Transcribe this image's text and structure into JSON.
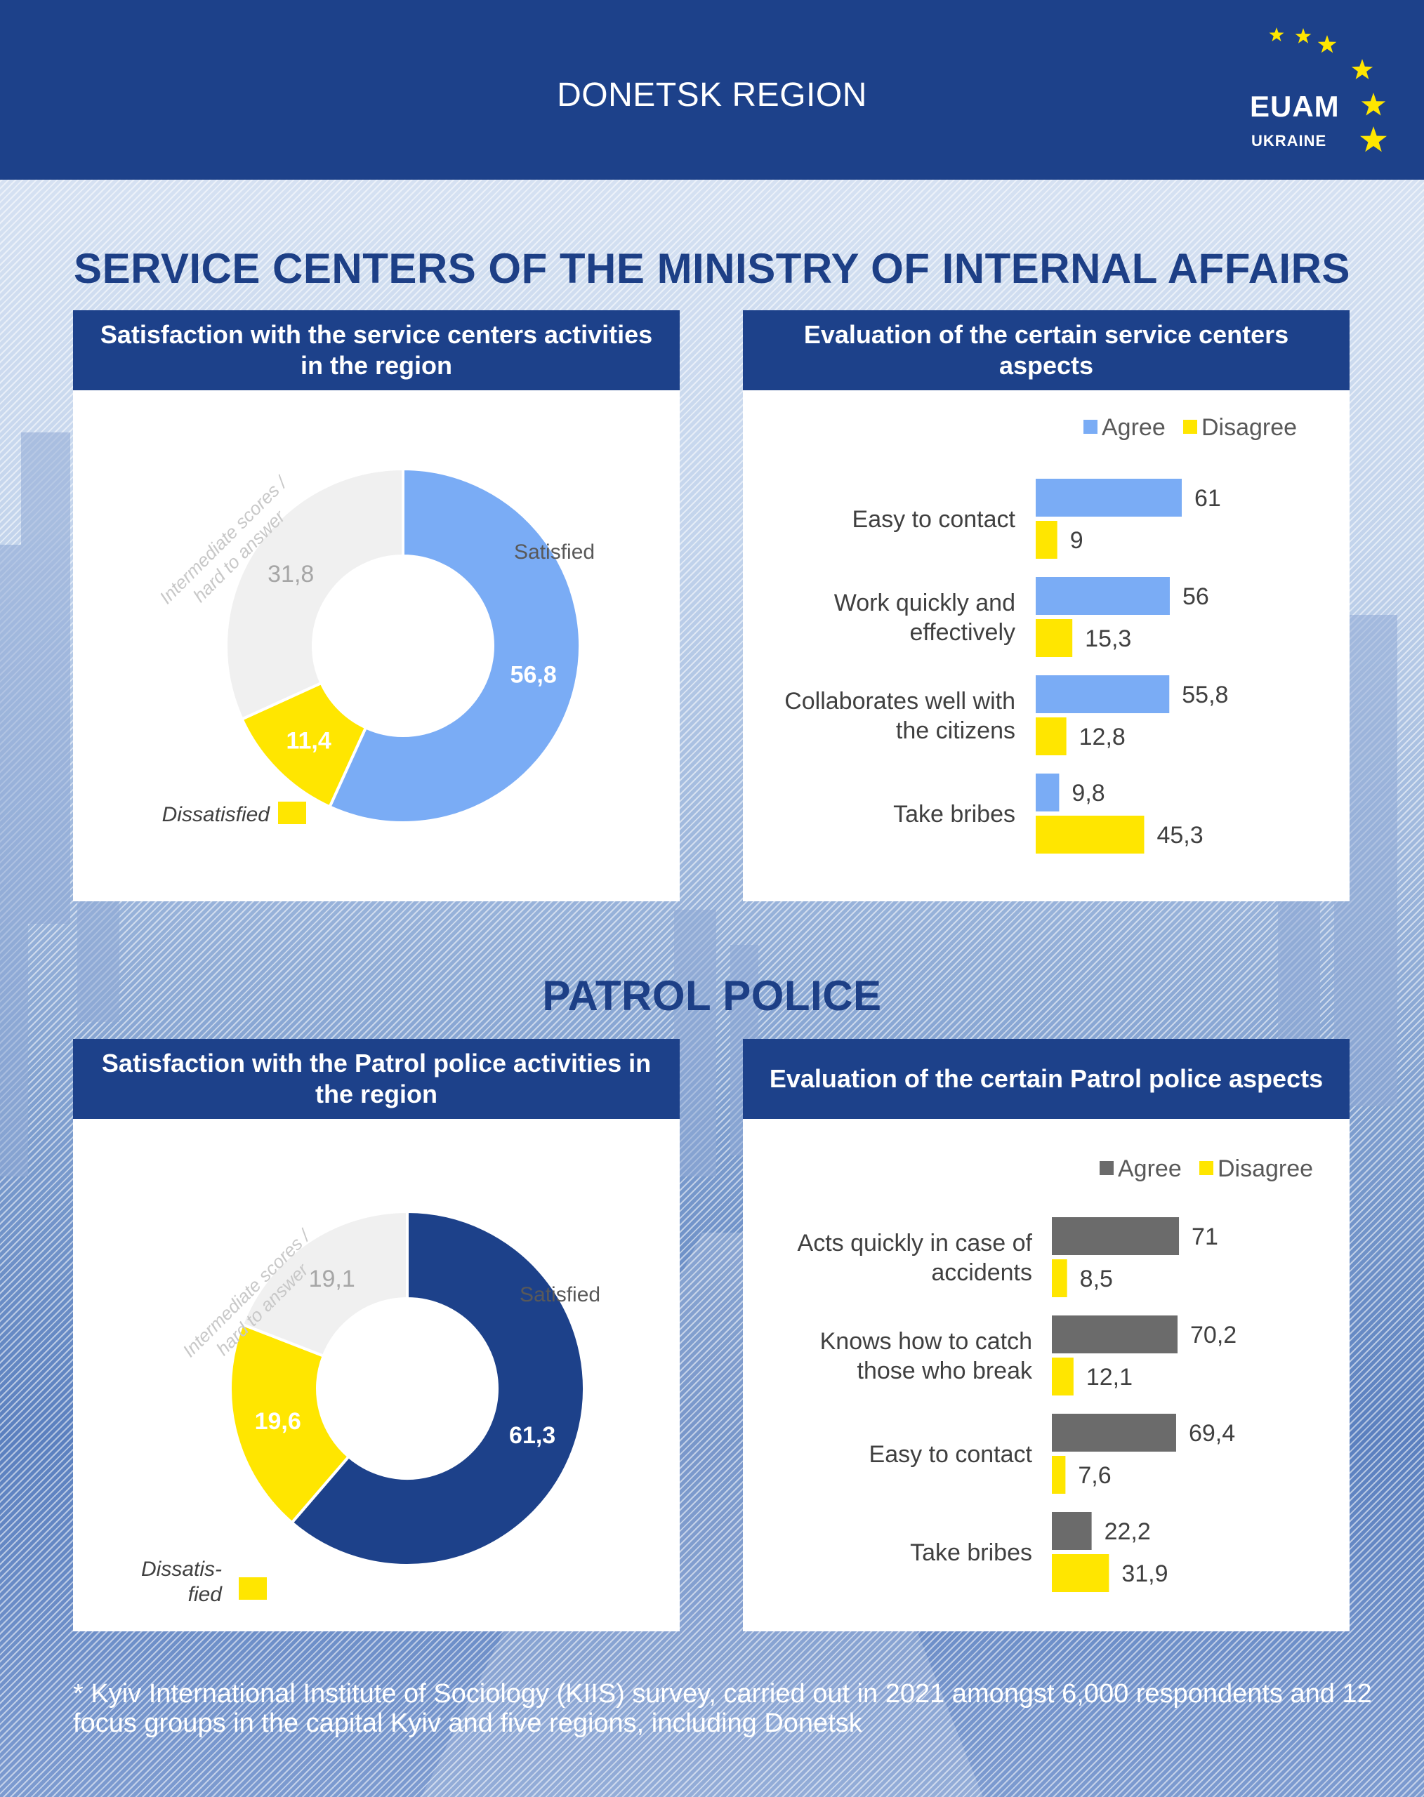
{
  "header": {
    "region": "DONETSK REGION"
  },
  "logo": {
    "name": "EUAM",
    "subtitle": "UKRAINE",
    "star_color": "#ffe600"
  },
  "colors": {
    "navy": "#1d418a",
    "light_blue": "#7aacf5",
    "yellow": "#ffe600",
    "grey_light": "#f0f0f0",
    "grey_dark": "#6b6b6b"
  },
  "sections": {
    "service_centers": "SERVICE CENTERS OF THE MINISTRY OF INTERNAL AFFAIRS",
    "patrol_police": "PATROL POLICE"
  },
  "panels": {
    "sc_satisfaction": {
      "title": "Satisfaction with the service centers activities in the region"
    },
    "sc_evaluation": {
      "title": "Evaluation of the certain service centers aspects"
    },
    "pp_satisfaction": {
      "title": "Satisfaction with the Patrol police activities in the region"
    },
    "pp_evaluation": {
      "title": "Evaluation of the certain Patrol police aspects"
    }
  },
  "chart_data": [
    {
      "id": "sc_donut",
      "type": "pie",
      "title": "Satisfaction with the service centers activities in the region",
      "slices": [
        {
          "label": "Satisfied",
          "value": 56.8,
          "display": "56,8",
          "color": "#7aacf5"
        },
        {
          "label": "Dissatisfied",
          "value": 11.4,
          "display": "11,4",
          "color": "#ffe600"
        },
        {
          "label": "Intermediate scores / hard to answer",
          "value": 31.8,
          "display": "31,8",
          "color": "#f0f0f0"
        }
      ],
      "legend": {
        "satisfied": "Satisfied",
        "dissatisfied": "Dissatisfied",
        "intermediate_line1": "Intermediate scores /",
        "intermediate_line2": "hard to answer"
      }
    },
    {
      "id": "sc_bars",
      "type": "bar",
      "title": "Evaluation of the certain service centers aspects",
      "categories": [
        "Easy to contact",
        "Work quickly and effectively",
        "Collaborates well with the citizens",
        "Take bribes"
      ],
      "category_lines": [
        [
          "Easy to contact"
        ],
        [
          "Work quickly and",
          "effectively"
        ],
        [
          "Collaborates well with",
          "the citizens"
        ],
        [
          "Take bribes"
        ]
      ],
      "series": [
        {
          "name": "Agree",
          "color": "#7aacf5",
          "values": [
            61,
            56,
            55.8,
            9.8
          ],
          "display": [
            "61",
            "56",
            "55,8",
            "9,8"
          ]
        },
        {
          "name": "Disagree",
          "color": "#ffe600",
          "values": [
            9,
            15.3,
            12.8,
            45.3
          ],
          "display": [
            "9",
            "15,3",
            "12,8",
            "45,3"
          ]
        }
      ],
      "orientation": "horizontal",
      "legend": "top-right"
    },
    {
      "id": "pp_donut",
      "type": "pie",
      "title": "Satisfaction with the Patrol police activities in the region",
      "slices": [
        {
          "label": "Satisfied",
          "value": 61.3,
          "display": "61,3",
          "color": "#1d418a"
        },
        {
          "label": "Dissatisfied",
          "value": 19.6,
          "display": "19,6",
          "color": "#ffe600"
        },
        {
          "label": "Intermediate scores / hard to answer",
          "value": 19.1,
          "display": "19,1",
          "color": "#f0f0f0"
        }
      ],
      "legend": {
        "satisfied": "Satisfied",
        "dissatisfied_line1": "Dissatis-",
        "dissatisfied_line2": "fied",
        "intermediate_line1": "Intermediate scores /",
        "intermediate_line2": "hard to answer"
      }
    },
    {
      "id": "pp_bars",
      "type": "bar",
      "title": "Evaluation of the certain Patrol police aspects",
      "categories": [
        "Acts quickly in case of accidents",
        "Knows how to catch those who break",
        "Easy to contact",
        "Take bribes"
      ],
      "category_lines": [
        [
          "Acts quickly in case of",
          "accidents"
        ],
        [
          "Knows how to catch",
          "those who break"
        ],
        [
          "Easy to contact"
        ],
        [
          "Take bribes"
        ]
      ],
      "series": [
        {
          "name": "Agree",
          "color": "#6b6b6b",
          "values": [
            71,
            70.2,
            69.4,
            22.2
          ],
          "display": [
            "71",
            "70,2",
            "69,4",
            "22,2"
          ]
        },
        {
          "name": "Disagree",
          "color": "#ffe600",
          "values": [
            8.5,
            12.1,
            7.6,
            31.9
          ],
          "display": [
            "8,5",
            "12,1",
            "7,6",
            "31,9"
          ]
        }
      ],
      "orientation": "horizontal",
      "legend": "top-right"
    }
  ],
  "footnote": "* Kyiv International Institute of Sociology (KIIS) survey, carried out in 2021 amongst 6,000 respondents and 12 focus groups in the capital Kyiv and five regions, including Donetsk"
}
